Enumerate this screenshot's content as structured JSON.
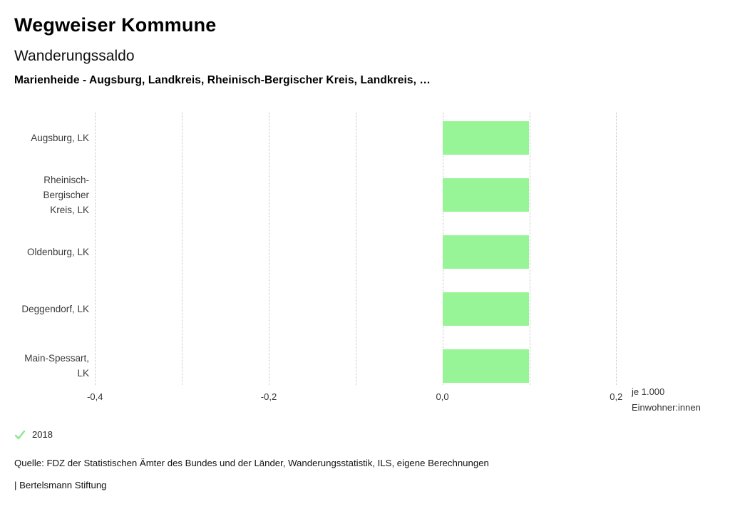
{
  "header": {
    "title": "Wegweiser Kommune",
    "subtitle": "Wanderungssaldo",
    "description": "Marienheide - Augsburg, Landkreis, Rheinisch-Bergischer Kreis, Landkreis, …"
  },
  "chart_data": {
    "type": "bar",
    "orientation": "horizontal",
    "title": "Wanderungssaldo",
    "categories": [
      "Augsburg, LK",
      "Rheinisch-Bergischer Kreis, LK",
      "Oldenburg, LK",
      "Deggendorf, LK",
      "Main-Spessart, LK"
    ],
    "category_lines": [
      [
        "Augsburg, LK"
      ],
      [
        "Rheinisch-",
        "Bergischer",
        "Kreis, LK"
      ],
      [
        "Oldenburg, LK"
      ],
      [
        "Deggendorf, LK"
      ],
      [
        "Main-Spessart,",
        "LK"
      ]
    ],
    "series": [
      {
        "name": "2018",
        "values": [
          0.1,
          0.1,
          0.1,
          0.1,
          0.1
        ]
      }
    ],
    "xlim": [
      -0.4,
      0.2
    ],
    "xticks": [
      -0.4,
      -0.3,
      -0.2,
      -0.1,
      0.0,
      0.1,
      0.2
    ],
    "xtick_labels": [
      {
        "value": -0.4,
        "label": "-0,4"
      },
      {
        "value": -0.2,
        "label": "-0,2"
      },
      {
        "value": 0.0,
        "label": "0,0"
      },
      {
        "value": 0.2,
        "label": "0,2"
      }
    ],
    "unit_label": "je 1.000 Einwohner:innen",
    "unit_label_lines": [
      "je 1.000",
      "Einwohner:innen"
    ],
    "bar_color": "#98f597",
    "gridline_color": "#c3c3c3",
    "grid": "dotted-vertical",
    "legend_position": "bottom-left"
  },
  "legend": {
    "icon": "check-icon",
    "check_color": "#8fe58f",
    "label": "2018"
  },
  "footer": {
    "source": "Quelle: FDZ der Statistischen Ämter des Bundes und der Länder, Wanderungsstatistik, ILS, eigene Berechnungen",
    "branding": "| Bertelsmann Stiftung"
  }
}
